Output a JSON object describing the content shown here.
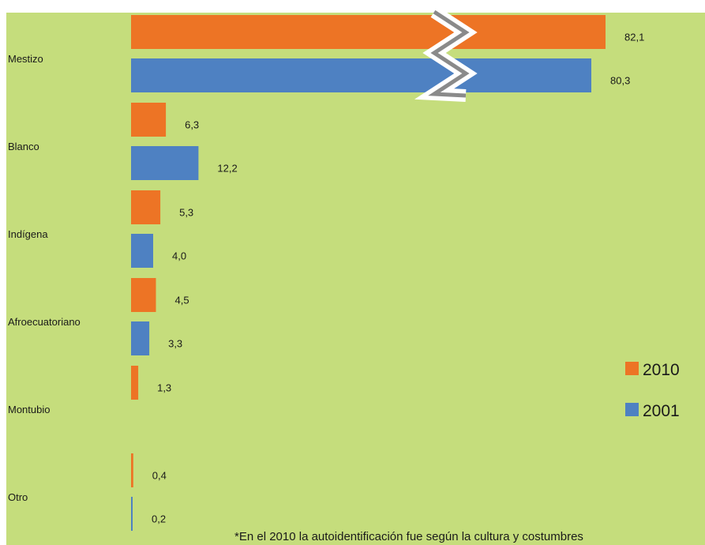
{
  "chart_data": {
    "type": "bar",
    "orientation": "horizontal",
    "categories": [
      "Mestizo",
      "Blanco",
      "Indígena",
      "Afroecuatoriano",
      "Montubio",
      "Otro"
    ],
    "series": [
      {
        "name": "2010",
        "color": "#ed7425",
        "values": [
          82.1,
          6.3,
          5.3,
          4.5,
          1.3,
          0.4
        ],
        "labels": [
          "82,1",
          "6,3",
          "5,3",
          "4,5",
          "1,3",
          "0,4"
        ]
      },
      {
        "name": "2001",
        "color": "#4e81c2",
        "values": [
          80.3,
          12.2,
          4.0,
          3.3,
          null,
          0.2
        ],
        "labels": [
          "80,3",
          "12,2",
          "4,0",
          "3,3",
          "",
          "0,2"
        ]
      }
    ],
    "axis_break": true,
    "legend_position": "right",
    "note": "*En el 2010 la autoidentificación fue según la cultura y costumbres",
    "background_color": "#c5dd7c"
  }
}
